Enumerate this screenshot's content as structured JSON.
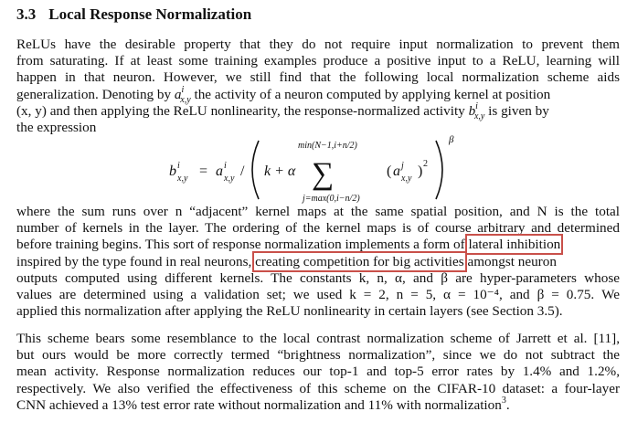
{
  "section": {
    "number": "3.3",
    "title": "Local Response Normalization"
  },
  "para1": {
    "l1": "ReLUs have the desirable property that they do not require input normalization to prevent them",
    "l2": "from saturating. If at least some training examples produce a positive input to a ReLU, learning will",
    "l3": "happen in that neuron. However, we still find that the following local normalization scheme aids",
    "l4a": "generalization. Denoting by ",
    "l4b": " the activity of a neuron computed by applying kernel ",
    "l4c": " at position",
    "l5a": "(x, y) and then applying the ReLU nonlinearity, the response-normalized activity ",
    "l5b": " is given by",
    "l6": "the expression"
  },
  "equation": {
    "lhs": "b",
    "sup_i": "i",
    "sub_xy": "x,y",
    "eq_sign": "=",
    "a": "a",
    "slash": "/",
    "k_plus_alpha": "k + α",
    "sum_upper": "min(N−1,i+n/2)",
    "sum_lower": "j=max(0,i−n/2)",
    "sum_sign": "∑",
    "term_a": "a",
    "sup_j": "j",
    "square": "2",
    "beta": "β"
  },
  "para2": {
    "l1": "where the sum runs over n “adjacent” kernel maps at the same spatial position, and N is the total",
    "l2": "number of kernels in the layer. The ordering of the kernel maps is of course arbitrary and determined",
    "l3a": "before training begins. This sort of response normalization implements a form of ",
    "l3hl": "lateral inhibition",
    "l4a": "inspired by the type found in real neurons, ",
    "l4hl": "creating competition for big activities",
    "l4b": " amongst neuron",
    "l5": "outputs computed using different kernels. The constants k, n, α, and β are hyper-parameters whose",
    "l6": "values are determined using a validation set; we used k = 2, n = 5, α = 10⁻⁴, and β = 0.75. We",
    "l7": "applied this normalization after applying the ReLU nonlinearity in certain layers (see Section 3.5)."
  },
  "para3": {
    "l1": "This scheme bears some resemblance to the local contrast normalization scheme of Jarrett et al. [11],",
    "l2": "but ours would be more correctly termed “brightness normalization”, since we do not subtract the",
    "l3": "mean activity. Response normalization reduces our top-1 and top-5 error rates by 1.4% and 1.2%,",
    "l4": "respectively. We also verified the effectiveness of this scheme on the CIFAR-10 dataset: a four-layer",
    "l5a": "CNN achieved a 13% test error rate without normalization and 11% with normalization",
    "l5fn": "3",
    "l5b": "."
  },
  "colors": {
    "highlight_box": "#c9504a",
    "text": "#111111"
  }
}
